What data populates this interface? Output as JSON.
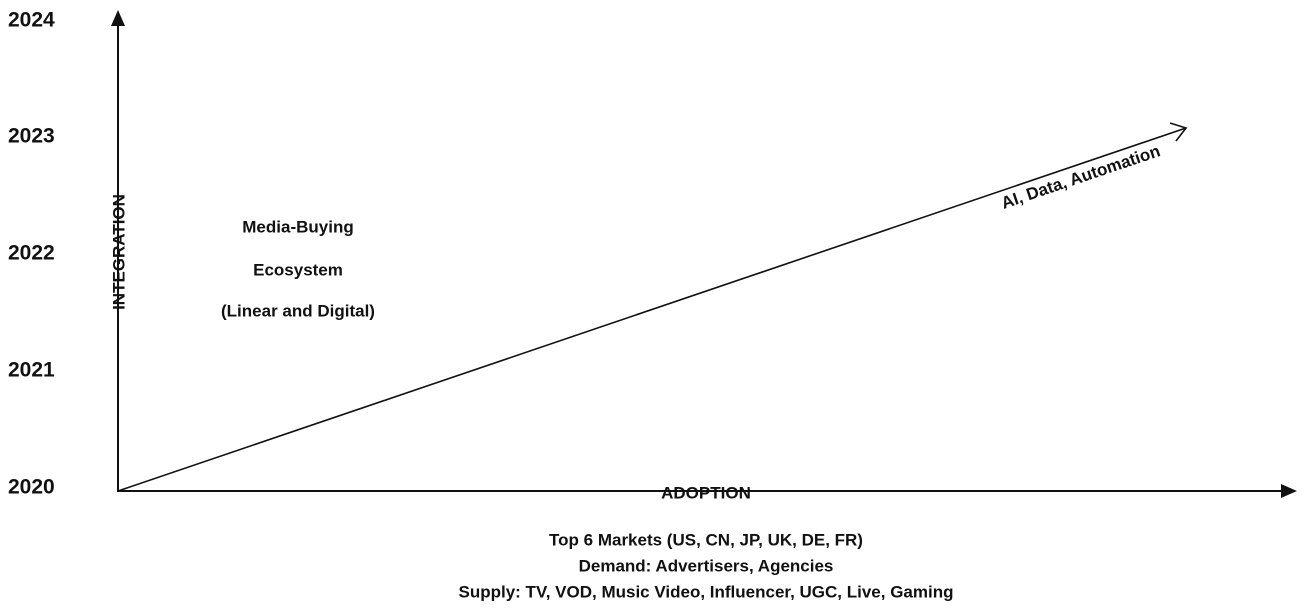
{
  "y_axis": {
    "title": "INTEGRATION",
    "labels": [
      "2024",
      "2023",
      "2022",
      "2021",
      "2020"
    ]
  },
  "x_axis": {
    "title": "ADOPTION"
  },
  "trend": {
    "label": "AI, Data, Automation"
  },
  "region": {
    "lines": [
      "Media-Buying",
      "Ecosystem",
      "(Linear and Digital)"
    ]
  },
  "footer": {
    "lines": [
      "Top 6 Markets (US, CN, JP, UK, DE, FR)",
      "Demand: Advertisers, Agencies",
      "Supply: TV, VOD, Music Video, Influencer, UGC, Live, Gaming"
    ]
  }
}
